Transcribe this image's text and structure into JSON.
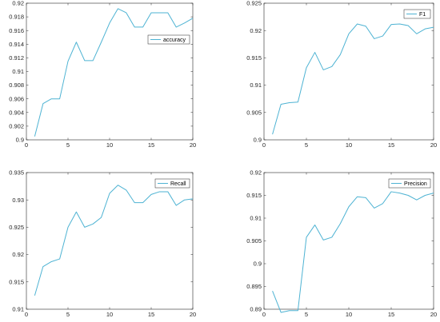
{
  "chart_data": [
    {
      "type": "line",
      "x": [
        1,
        2,
        3,
        4,
        5,
        6,
        7,
        8,
        9,
        10,
        11,
        12,
        13,
        14,
        15,
        16,
        17,
        18,
        19,
        20
      ],
      "series": [
        {
          "name": "accuracy",
          "values": [
            0.9005,
            0.9053,
            0.906,
            0.906,
            0.9115,
            0.9143,
            0.9116,
            0.9116,
            0.9143,
            0.9171,
            0.9192,
            0.9186,
            0.9165,
            0.9165,
            0.9186,
            0.9186,
            0.9186,
            0.9165,
            0.9171,
            0.9178
          ]
        }
      ],
      "xlim": [
        0,
        20
      ],
      "ylim": [
        0.9,
        0.92
      ],
      "xticks": [
        "0",
        "5",
        "10",
        "15",
        "20"
      ],
      "yticks": [
        "0.9",
        "0.902",
        "0.904",
        "0.906",
        "0.908",
        "0.91",
        "0.912",
        "0.914",
        "0.916",
        "0.918",
        "0.92"
      ],
      "legend_position": "top-right",
      "grid": false
    },
    {
      "type": "line",
      "x": [
        1,
        2,
        3,
        4,
        5,
        6,
        7,
        8,
        9,
        10,
        11,
        12,
        13,
        14,
        15,
        16,
        17,
        18,
        19,
        20
      ],
      "series": [
        {
          "name": "F1",
          "values": [
            0.901,
            0.9065,
            0.9068,
            0.9069,
            0.9132,
            0.916,
            0.9128,
            0.9134,
            0.9156,
            0.9194,
            0.9212,
            0.9208,
            0.9185,
            0.919,
            0.9211,
            0.9212,
            0.9209,
            0.9194,
            0.9203,
            0.9206
          ]
        }
      ],
      "xlim": [
        0,
        20
      ],
      "ylim": [
        0.9,
        0.925
      ],
      "xticks": [
        "0",
        "5",
        "10",
        "15",
        "20"
      ],
      "yticks": [
        "0.9",
        "0.905",
        "0.91",
        "0.915",
        "0.92",
        "0.925"
      ],
      "legend_position": "top-right",
      "grid": false
    },
    {
      "type": "line",
      "x": [
        1,
        2,
        3,
        4,
        5,
        6,
        7,
        8,
        9,
        10,
        11,
        12,
        13,
        14,
        15,
        16,
        17,
        18,
        19,
        20
      ],
      "series": [
        {
          "name": "Recall",
          "values": [
            0.9125,
            0.9178,
            0.9187,
            0.9192,
            0.925,
            0.9278,
            0.925,
            0.9256,
            0.9268,
            0.9312,
            0.9327,
            0.9318,
            0.9295,
            0.9295,
            0.931,
            0.9315,
            0.9315,
            0.929,
            0.93,
            0.9302
          ]
        }
      ],
      "xlim": [
        0,
        20
      ],
      "ylim": [
        0.91,
        0.935
      ],
      "xticks": [
        "0",
        "5",
        "10",
        "15",
        "20"
      ],
      "yticks": [
        "0.91",
        "0.915",
        "0.92",
        "0.925",
        "0.93",
        "0.935"
      ],
      "legend_position": "top-right",
      "grid": false
    },
    {
      "type": "line",
      "x": [
        1,
        2,
        3,
        4,
        5,
        6,
        7,
        8,
        9,
        10,
        11,
        12,
        13,
        14,
        15,
        16,
        17,
        18,
        19,
        20
      ],
      "series": [
        {
          "name": "Precision",
          "values": [
            0.894,
            0.8893,
            0.8897,
            0.8897,
            0.9058,
            0.9085,
            0.9052,
            0.9058,
            0.9088,
            0.9125,
            0.9147,
            0.9145,
            0.9122,
            0.9132,
            0.9158,
            0.9155,
            0.915,
            0.914,
            0.915,
            0.9155
          ]
        }
      ],
      "xlim": [
        0,
        20
      ],
      "ylim": [
        0.89,
        0.92
      ],
      "xticks": [
        "0",
        "5",
        "10",
        "15",
        "20"
      ],
      "yticks": [
        "0.89",
        "0.895",
        "0.9",
        "0.905",
        "0.91",
        "0.915",
        "0.92"
      ],
      "legend_position": "top-right",
      "grid": false
    }
  ],
  "colors": {
    "series": "#4eb3d3",
    "axis": "#262626"
  }
}
